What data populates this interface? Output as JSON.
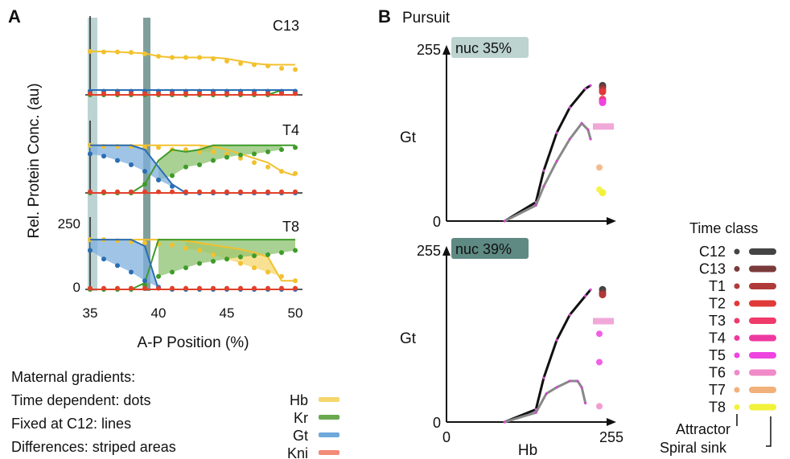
{
  "panel_a": {
    "label": "A",
    "ylabel": "Rel. Protein Conc. (au)",
    "xlabel": "A-P Position (%)",
    "x_ticks": [
      "35",
      "40",
      "45",
      "50"
    ],
    "y_ticks": [
      "0",
      "250"
    ],
    "subplots": [
      "C13",
      "T4",
      "T8"
    ]
  },
  "panel_b": {
    "label": "B",
    "title": "Pursuit",
    "plots": [
      {
        "badge": "nuc 35%",
        "ylabel": "Gt",
        "y_top": "255",
        "y_zero": "0"
      },
      {
        "badge": "nuc 39%",
        "ylabel": "Gt",
        "y_top": "255",
        "y_zero": "0",
        "x_zero": "0",
        "x_max": "255",
        "xlabel": "Hb"
      }
    ]
  },
  "legend_left": {
    "lines": [
      "Maternal gradients:",
      "Time dependent: dots",
      "Fixed at C12: lines",
      "Differences: striped areas"
    ],
    "genes": [
      {
        "name": "Hb",
        "color": "#f5d76e"
      },
      {
        "name": "Kr",
        "color": "#6aa84f"
      },
      {
        "name": "Gt",
        "color": "#6fa8dc"
      },
      {
        "name": "Kni",
        "color": "#f28b78"
      }
    ]
  },
  "legend_time": {
    "title": "Time class",
    "classes": [
      {
        "name": "C12",
        "color": "#444444"
      },
      {
        "name": "C13",
        "color": "#7a3b3b"
      },
      {
        "name": "T1",
        "color": "#b03a3a"
      },
      {
        "name": "T2",
        "color": "#e03a3a"
      },
      {
        "name": "T3",
        "color": "#ef3a6a"
      },
      {
        "name": "T4",
        "color": "#ee3aa0"
      },
      {
        "name": "T5",
        "color": "#ee44e0"
      },
      {
        "name": "T6",
        "color": "#f08ac8"
      },
      {
        "name": "T7",
        "color": "#f2b07a"
      },
      {
        "name": "T8",
        "color": "#f2f23a"
      }
    ],
    "footer": [
      "Attractor",
      "Spiral sink"
    ]
  },
  "colors": {
    "hb": "#f2c12e",
    "kr": "#3f9b2a",
    "gt": "#2a6db5",
    "kni": "#e0402a",
    "band_light": "#bcd3d3",
    "band_dark": "#7f9f9c",
    "badge1": "#bcd3d0",
    "badge2": "#5f8a84"
  },
  "chart_data": [
    {
      "type": "line",
      "title": "C13",
      "x": [
        35,
        36,
        37,
        38,
        39,
        40,
        41,
        42,
        43,
        44,
        45,
        46,
        47,
        48,
        49,
        50
      ],
      "series": [
        {
          "name": "Hb",
          "line": [
            180,
            180,
            178,
            175,
            172,
            160,
            155,
            155,
            155,
            155,
            150,
            140,
            130,
            125,
            125,
            125
          ],
          "dots": [
            180,
            178,
            178,
            176,
            170,
            160,
            155,
            155,
            155,
            150,
            140,
            130,
            125,
            120,
            110,
            105
          ]
        },
        {
          "name": "Kr",
          "line": [
            0,
            0,
            0,
            0,
            0,
            0,
            0,
            0,
            0,
            0,
            0,
            0,
            0,
            0,
            20,
            20
          ],
          "dots": [
            0,
            0,
            0,
            0,
            0,
            0,
            0,
            0,
            0,
            0,
            0,
            0,
            0,
            0,
            10,
            15
          ]
        },
        {
          "name": "Gt",
          "line": [
            20,
            20,
            20,
            20,
            20,
            20,
            20,
            20,
            20,
            20,
            20,
            20,
            20,
            20,
            20,
            20
          ],
          "dots": [
            15,
            15,
            15,
            15,
            15,
            15,
            15,
            15,
            15,
            15,
            15,
            15,
            15,
            15,
            15,
            15
          ]
        },
        {
          "name": "Kni",
          "line": [
            0,
            0,
            0,
            0,
            0,
            0,
            0,
            0,
            0,
            0,
            0,
            0,
            0,
            0,
            0,
            0
          ],
          "dots": [
            5,
            5,
            5,
            5,
            5,
            5,
            5,
            5,
            5,
            5,
            5,
            5,
            5,
            5,
            5,
            5
          ]
        }
      ],
      "xlim": [
        35,
        51
      ],
      "ylim": [
        0,
        260
      ]
    },
    {
      "type": "line",
      "title": "T4",
      "x": [
        35,
        36,
        37,
        38,
        39,
        40,
        41,
        42,
        43,
        44,
        45,
        46,
        47,
        48,
        49,
        50
      ],
      "series": [
        {
          "name": "Hb",
          "line": [
            220,
            220,
            220,
            220,
            220,
            220,
            220,
            220,
            220,
            215,
            200,
            180,
            160,
            140,
            100,
            80
          ],
          "dots": [
            220,
            215,
            215,
            215,
            210,
            210,
            200,
            200,
            190,
            190,
            180,
            160,
            140,
            120,
            100,
            90
          ]
        },
        {
          "name": "Kr",
          "line": [
            0,
            0,
            0,
            0,
            40,
            150,
            200,
            190,
            200,
            220,
            220,
            220,
            220,
            220,
            220,
            220
          ],
          "dots": [
            0,
            0,
            0,
            0,
            40,
            60,
            80,
            120,
            130,
            150,
            165,
            175,
            180,
            190,
            200,
            210
          ]
        },
        {
          "name": "Gt",
          "line": [
            220,
            220,
            220,
            220,
            200,
            120,
            40,
            0,
            0,
            0,
            0,
            0,
            0,
            0,
            0,
            0
          ],
          "dots": [
            180,
            170,
            150,
            130,
            100,
            60,
            30,
            0,
            0,
            0,
            0,
            0,
            0,
            0,
            0,
            0
          ]
        },
        {
          "name": "Kni",
          "line": [
            0,
            0,
            0,
            0,
            0,
            0,
            0,
            0,
            0,
            0,
            0,
            0,
            0,
            0,
            0,
            0
          ],
          "dots": [
            5,
            5,
            5,
            5,
            5,
            5,
            5,
            5,
            5,
            5,
            5,
            5,
            5,
            5,
            5,
            5
          ]
        }
      ],
      "xlim": [
        35,
        51
      ],
      "ylim": [
        0,
        260
      ]
    },
    {
      "type": "line",
      "title": "T8",
      "x": [
        35,
        36,
        37,
        38,
        39,
        40,
        41,
        42,
        43,
        44,
        45,
        46,
        47,
        48,
        49,
        50
      ],
      "series": [
        {
          "name": "Hb",
          "line": [
            230,
            230,
            230,
            230,
            230,
            230,
            230,
            225,
            215,
            205,
            195,
            185,
            170,
            150,
            40,
            40
          ],
          "dots": [
            230,
            230,
            225,
            220,
            215,
            210,
            205,
            190,
            180,
            160,
            140,
            120,
            100,
            80,
            60,
            40
          ]
        },
        {
          "name": "Kr",
          "line": [
            0,
            0,
            0,
            0,
            30,
            230,
            230,
            230,
            230,
            230,
            230,
            230,
            230,
            230,
            230,
            230
          ],
          "dots": [
            0,
            0,
            0,
            0,
            20,
            60,
            80,
            100,
            120,
            130,
            140,
            150,
            155,
            160,
            170,
            180
          ]
        },
        {
          "name": "Gt",
          "line": [
            230,
            230,
            230,
            230,
            200,
            0,
            0,
            0,
            0,
            0,
            0,
            0,
            0,
            0,
            0,
            0
          ],
          "dots": [
            180,
            140,
            110,
            80,
            40,
            10,
            0,
            0,
            0,
            0,
            0,
            0,
            0,
            0,
            0,
            0
          ]
        },
        {
          "name": "Kni",
          "line": [
            0,
            0,
            0,
            0,
            0,
            0,
            0,
            0,
            0,
            0,
            0,
            0,
            0,
            0,
            0,
            0
          ],
          "dots": [
            5,
            5,
            5,
            5,
            5,
            5,
            5,
            5,
            5,
            5,
            5,
            5,
            5,
            5,
            5,
            5
          ]
        }
      ],
      "xlim": [
        35,
        51
      ],
      "ylim": [
        0,
        260
      ],
      "x_ticks": [
        35,
        40,
        45,
        50
      ]
    },
    {
      "type": "line",
      "title": "nuc 35%",
      "xlabel": "Hb",
      "ylabel": "Gt",
      "xlim": [
        0,
        255
      ],
      "ylim": [
        0,
        255
      ],
      "series": [
        {
          "name": "Attractor",
          "x": [
            50,
            110,
            125,
            150,
            175,
            205,
            215
          ],
          "y": [
            0,
            30,
            80,
            140,
            180,
            210,
            215
          ]
        },
        {
          "name": "Spiral sink",
          "x": [
            50,
            110,
            125,
            150,
            175,
            198,
            210,
            215
          ],
          "y": [
            0,
            25,
            55,
            95,
            130,
            155,
            145,
            130
          ]
        }
      ],
      "attractor_points": [
        {
          "class": "C12",
          "y": 215
        },
        {
          "class": "C13",
          "y": 212
        },
        {
          "class": "T1",
          "y": 208
        },
        {
          "class": "T2",
          "y": 205
        },
        {
          "class": "T3",
          "y": 193
        },
        {
          "class": "T4",
          "y": 190
        },
        {
          "class": "T5",
          "y": 188
        },
        {
          "class": "T8",
          "y": 45
        }
      ],
      "spiral_points": [
        {
          "class": "T7",
          "y": 85
        },
        {
          "class": "T8",
          "y": 50
        }
      ],
      "sink_bar": {
        "class": "T6",
        "y": 150
      }
    },
    {
      "type": "line",
      "title": "nuc 39%",
      "xlabel": "Hb",
      "ylabel": "Gt",
      "xlim": [
        0,
        255
      ],
      "ylim": [
        0,
        255
      ],
      "series": [
        {
          "name": "Attractor",
          "x": [
            50,
            110,
            125,
            150,
            175,
            205,
            215
          ],
          "y": [
            0,
            20,
            70,
            130,
            170,
            200,
            210
          ]
        },
        {
          "name": "Spiral sink",
          "x": [
            50,
            110,
            130,
            150,
            175,
            190,
            198,
            205
          ],
          "y": [
            0,
            15,
            45,
            55,
            65,
            65,
            55,
            30
          ]
        }
      ],
      "attractor_points": [
        {
          "class": "C12",
          "y": 210
        },
        {
          "class": "C13",
          "y": 205
        },
        {
          "class": "T1",
          "y": 202
        }
      ],
      "spiral_points": [
        {
          "class": "T5",
          "y": 140
        },
        {
          "class": "T5",
          "y": 95
        },
        {
          "class": "T6",
          "y": 25
        }
      ],
      "sink_bar": {
        "class": "T6",
        "y": 160
      }
    }
  ]
}
